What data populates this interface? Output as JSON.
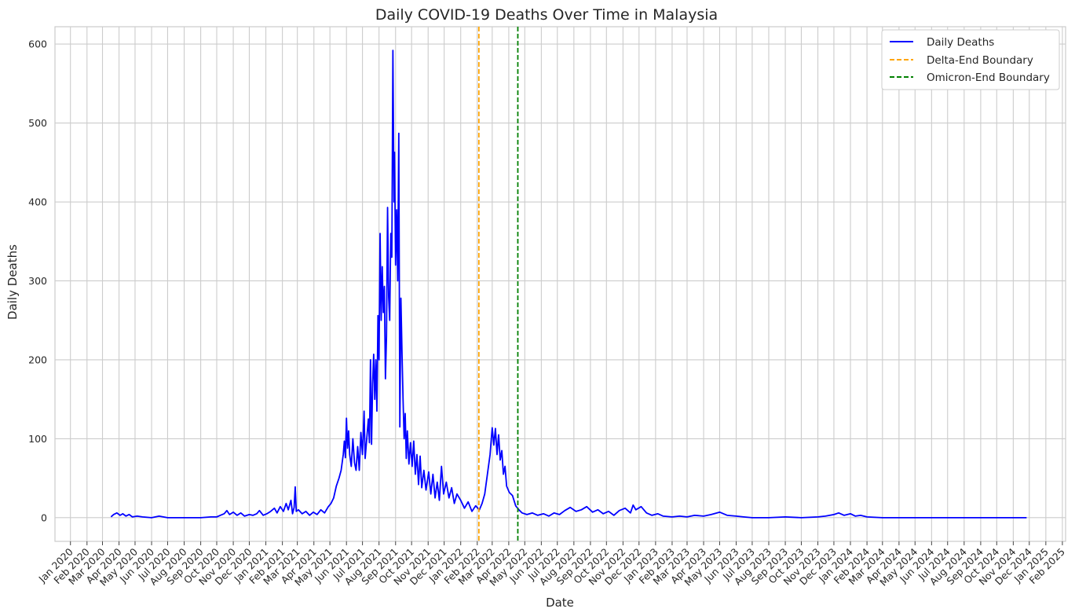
{
  "chart_data": {
    "type": "line",
    "title": "Daily COVID-19 Deaths Over Time in Malaysia",
    "xlabel": "Date",
    "ylabel": "Daily Deaths",
    "xlim": [
      "2019-12-03",
      "2025-02-07"
    ],
    "ylim": [
      -30,
      622
    ],
    "yticks": [
      0,
      100,
      200,
      300,
      400,
      500,
      600
    ],
    "xticks": [
      {
        "date": "2020-01-01",
        "label": "Jan 2020"
      },
      {
        "date": "2020-02-01",
        "label": "Feb 2020"
      },
      {
        "date": "2020-03-01",
        "label": "Mar 2020"
      },
      {
        "date": "2020-04-01",
        "label": "Apr 2020"
      },
      {
        "date": "2020-05-01",
        "label": "May 2020"
      },
      {
        "date": "2020-06-01",
        "label": "Jun 2020"
      },
      {
        "date": "2020-07-01",
        "label": "Jul 2020"
      },
      {
        "date": "2020-08-01",
        "label": "Aug 2020"
      },
      {
        "date": "2020-09-01",
        "label": "Sep 2020"
      },
      {
        "date": "2020-10-01",
        "label": "Oct 2020"
      },
      {
        "date": "2020-11-01",
        "label": "Nov 2020"
      },
      {
        "date": "2020-12-01",
        "label": "Dec 2020"
      },
      {
        "date": "2021-01-01",
        "label": "Jan 2021"
      },
      {
        "date": "2021-02-01",
        "label": "Feb 2021"
      },
      {
        "date": "2021-03-01",
        "label": "Mar 2021"
      },
      {
        "date": "2021-04-01",
        "label": "Apr 2021"
      },
      {
        "date": "2021-05-01",
        "label": "May 2021"
      },
      {
        "date": "2021-06-01",
        "label": "Jun 2021"
      },
      {
        "date": "2021-07-01",
        "label": "Jul 2021"
      },
      {
        "date": "2021-08-01",
        "label": "Aug 2021"
      },
      {
        "date": "2021-09-01",
        "label": "Sep 2021"
      },
      {
        "date": "2021-10-01",
        "label": "Oct 2021"
      },
      {
        "date": "2021-11-01",
        "label": "Nov 2021"
      },
      {
        "date": "2021-12-01",
        "label": "Dec 2021"
      },
      {
        "date": "2022-01-01",
        "label": "Jan 2022"
      },
      {
        "date": "2022-02-01",
        "label": "Feb 2022"
      },
      {
        "date": "2022-03-01",
        "label": "Mar 2022"
      },
      {
        "date": "2022-04-01",
        "label": "Apr 2022"
      },
      {
        "date": "2022-05-01",
        "label": "May 2022"
      },
      {
        "date": "2022-06-01",
        "label": "Jun 2022"
      },
      {
        "date": "2022-07-01",
        "label": "Jul 2022"
      },
      {
        "date": "2022-08-01",
        "label": "Aug 2022"
      },
      {
        "date": "2022-09-01",
        "label": "Sep 2022"
      },
      {
        "date": "2022-10-01",
        "label": "Oct 2022"
      },
      {
        "date": "2022-11-01",
        "label": "Nov 2022"
      },
      {
        "date": "2022-12-01",
        "label": "Dec 2022"
      },
      {
        "date": "2023-01-01",
        "label": "Jan 2023"
      },
      {
        "date": "2023-02-01",
        "label": "Feb 2023"
      },
      {
        "date": "2023-03-01",
        "label": "Mar 2023"
      },
      {
        "date": "2023-04-01",
        "label": "Apr 2023"
      },
      {
        "date": "2023-05-01",
        "label": "May 2023"
      },
      {
        "date": "2023-06-01",
        "label": "Jun 2023"
      },
      {
        "date": "2023-07-01",
        "label": "Jul 2023"
      },
      {
        "date": "2023-08-01",
        "label": "Aug 2023"
      },
      {
        "date": "2023-09-01",
        "label": "Sep 2023"
      },
      {
        "date": "2023-10-01",
        "label": "Oct 2023"
      },
      {
        "date": "2023-11-01",
        "label": "Nov 2023"
      },
      {
        "date": "2023-12-01",
        "label": "Dec 2023"
      },
      {
        "date": "2024-01-01",
        "label": "Jan 2024"
      },
      {
        "date": "2024-02-01",
        "label": "Feb 2024"
      },
      {
        "date": "2024-03-01",
        "label": "Mar 2024"
      },
      {
        "date": "2024-04-01",
        "label": "Apr 2024"
      },
      {
        "date": "2024-05-01",
        "label": "May 2024"
      },
      {
        "date": "2024-06-01",
        "label": "Jun 2024"
      },
      {
        "date": "2024-07-01",
        "label": "Jul 2024"
      },
      {
        "date": "2024-08-01",
        "label": "Aug 2024"
      },
      {
        "date": "2024-09-01",
        "label": "Sep 2024"
      },
      {
        "date": "2024-10-01",
        "label": "Oct 2024"
      },
      {
        "date": "2024-11-01",
        "label": "Nov 2024"
      },
      {
        "date": "2024-12-01",
        "label": "Dec 2024"
      },
      {
        "date": "2025-01-01",
        "label": "Jan 2025"
      },
      {
        "date": "2025-02-01",
        "label": "Feb 2025"
      }
    ],
    "grid": true,
    "legend_position": "top-right",
    "series": [
      {
        "name": "Daily Deaths",
        "color": "#0000ff",
        "style": "solid",
        "points": [
          [
            "2020-03-17",
            1
          ],
          [
            "2020-03-22",
            4
          ],
          [
            "2020-03-28",
            6
          ],
          [
            "2020-04-03",
            3
          ],
          [
            "2020-04-08",
            5
          ],
          [
            "2020-04-14",
            2
          ],
          [
            "2020-04-20",
            4
          ],
          [
            "2020-04-26",
            1
          ],
          [
            "2020-05-05",
            2
          ],
          [
            "2020-05-15",
            1
          ],
          [
            "2020-06-01",
            0
          ],
          [
            "2020-06-15",
            2
          ],
          [
            "2020-07-01",
            0
          ],
          [
            "2020-08-01",
            0
          ],
          [
            "2020-09-01",
            0
          ],
          [
            "2020-09-20",
            1
          ],
          [
            "2020-10-01",
            1
          ],
          [
            "2020-10-08",
            3
          ],
          [
            "2020-10-15",
            5
          ],
          [
            "2020-10-20",
            9
          ],
          [
            "2020-10-25",
            4
          ],
          [
            "2020-11-01",
            7
          ],
          [
            "2020-11-08",
            3
          ],
          [
            "2020-11-15",
            6
          ],
          [
            "2020-11-22",
            2
          ],
          [
            "2020-12-01",
            4
          ],
          [
            "2020-12-08",
            3
          ],
          [
            "2020-12-15",
            5
          ],
          [
            "2020-12-20",
            9
          ],
          [
            "2020-12-27",
            3
          ],
          [
            "2021-01-03",
            5
          ],
          [
            "2021-01-10",
            8
          ],
          [
            "2021-01-17",
            12
          ],
          [
            "2021-01-22",
            6
          ],
          [
            "2021-01-28",
            14
          ],
          [
            "2021-02-03",
            8
          ],
          [
            "2021-02-08",
            18
          ],
          [
            "2021-02-12",
            10
          ],
          [
            "2021-02-17",
            22
          ],
          [
            "2021-02-20",
            5
          ],
          [
            "2021-02-23",
            13
          ],
          [
            "2021-02-25",
            39
          ],
          [
            "2021-02-27",
            8
          ],
          [
            "2021-03-03",
            10
          ],
          [
            "2021-03-10",
            5
          ],
          [
            "2021-03-17",
            8
          ],
          [
            "2021-03-24",
            3
          ],
          [
            "2021-03-31",
            7
          ],
          [
            "2021-04-07",
            4
          ],
          [
            "2021-04-14",
            10
          ],
          [
            "2021-04-21",
            6
          ],
          [
            "2021-04-28",
            14
          ],
          [
            "2021-05-03",
            18
          ],
          [
            "2021-05-08",
            25
          ],
          [
            "2021-05-13",
            40
          ],
          [
            "2021-05-18",
            50
          ],
          [
            "2021-05-22",
            60
          ],
          [
            "2021-05-26",
            80
          ],
          [
            "2021-05-28",
            97
          ],
          [
            "2021-05-30",
            76
          ],
          [
            "2021-06-01",
            126
          ],
          [
            "2021-06-03",
            88
          ],
          [
            "2021-06-05",
            110
          ],
          [
            "2021-06-07",
            80
          ],
          [
            "2021-06-10",
            65
          ],
          [
            "2021-06-13",
            100
          ],
          [
            "2021-06-16",
            70
          ],
          [
            "2021-06-19",
            60
          ],
          [
            "2021-06-22",
            90
          ],
          [
            "2021-06-25",
            60
          ],
          [
            "2021-06-28",
            108
          ],
          [
            "2021-07-01",
            80
          ],
          [
            "2021-07-04",
            135
          ],
          [
            "2021-07-06",
            75
          ],
          [
            "2021-07-09",
            100
          ],
          [
            "2021-07-12",
            125
          ],
          [
            "2021-07-14",
            95
          ],
          [
            "2021-07-16",
            200
          ],
          [
            "2021-07-18",
            93
          ],
          [
            "2021-07-20",
            170
          ],
          [
            "2021-07-22",
            207
          ],
          [
            "2021-07-24",
            150
          ],
          [
            "2021-07-26",
            200
          ],
          [
            "2021-07-28",
            135
          ],
          [
            "2021-07-30",
            256
          ],
          [
            "2021-08-01",
            200
          ],
          [
            "2021-08-03",
            360
          ],
          [
            "2021-08-05",
            250
          ],
          [
            "2021-08-07",
            318
          ],
          [
            "2021-08-09",
            260
          ],
          [
            "2021-08-11",
            293
          ],
          [
            "2021-08-13",
            176
          ],
          [
            "2021-08-15",
            230
          ],
          [
            "2021-08-17",
            393
          ],
          [
            "2021-08-19",
            280
          ],
          [
            "2021-08-21",
            250
          ],
          [
            "2021-08-23",
            360
          ],
          [
            "2021-08-25",
            330
          ],
          [
            "2021-08-27",
            592
          ],
          [
            "2021-08-29",
            400
          ],
          [
            "2021-08-30",
            463
          ],
          [
            "2021-09-01",
            320
          ],
          [
            "2021-09-03",
            390
          ],
          [
            "2021-09-05",
            300
          ],
          [
            "2021-09-07",
            487
          ],
          [
            "2021-09-09",
            115
          ],
          [
            "2021-09-11",
            278
          ],
          [
            "2021-09-13",
            210
          ],
          [
            "2021-09-15",
            150
          ],
          [
            "2021-09-17",
            100
          ],
          [
            "2021-09-19",
            132
          ],
          [
            "2021-09-21",
            75
          ],
          [
            "2021-09-23",
            110
          ],
          [
            "2021-09-26",
            68
          ],
          [
            "2021-09-29",
            95
          ],
          [
            "2021-10-02",
            65
          ],
          [
            "2021-10-05",
            97
          ],
          [
            "2021-10-08",
            55
          ],
          [
            "2021-10-11",
            80
          ],
          [
            "2021-10-14",
            42
          ],
          [
            "2021-10-17",
            78
          ],
          [
            "2021-10-20",
            38
          ],
          [
            "2021-10-24",
            60
          ],
          [
            "2021-10-28",
            35
          ],
          [
            "2021-11-02",
            58
          ],
          [
            "2021-11-06",
            30
          ],
          [
            "2021-11-10",
            55
          ],
          [
            "2021-11-14",
            25
          ],
          [
            "2021-11-18",
            45
          ],
          [
            "2021-11-22",
            22
          ],
          [
            "2021-11-26",
            65
          ],
          [
            "2021-11-30",
            30
          ],
          [
            "2021-12-05",
            45
          ],
          [
            "2021-12-10",
            25
          ],
          [
            "2021-12-15",
            38
          ],
          [
            "2021-12-20",
            18
          ],
          [
            "2021-12-25",
            30
          ],
          [
            "2022-01-01",
            22
          ],
          [
            "2022-01-08",
            12
          ],
          [
            "2022-01-15",
            20
          ],
          [
            "2022-01-22",
            8
          ],
          [
            "2022-01-29",
            15
          ],
          [
            "2022-02-05",
            10
          ],
          [
            "2022-02-10",
            18
          ],
          [
            "2022-02-15",
            30
          ],
          [
            "2022-02-20",
            55
          ],
          [
            "2022-02-25",
            80
          ],
          [
            "2022-03-01",
            114
          ],
          [
            "2022-03-04",
            92
          ],
          [
            "2022-03-07",
            113
          ],
          [
            "2022-03-10",
            80
          ],
          [
            "2022-03-13",
            105
          ],
          [
            "2022-03-16",
            73
          ],
          [
            "2022-03-19",
            85
          ],
          [
            "2022-03-22",
            55
          ],
          [
            "2022-03-25",
            65
          ],
          [
            "2022-03-28",
            40
          ],
          [
            "2022-04-02",
            32
          ],
          [
            "2022-04-08",
            28
          ],
          [
            "2022-04-14",
            15
          ],
          [
            "2022-04-20",
            10
          ],
          [
            "2022-04-26",
            6
          ],
          [
            "2022-05-05",
            4
          ],
          [
            "2022-05-15",
            6
          ],
          [
            "2022-05-25",
            3
          ],
          [
            "2022-06-05",
            5
          ],
          [
            "2022-06-15",
            2
          ],
          [
            "2022-06-25",
            6
          ],
          [
            "2022-07-05",
            4
          ],
          [
            "2022-07-15",
            9
          ],
          [
            "2022-07-25",
            13
          ],
          [
            "2022-08-05",
            8
          ],
          [
            "2022-08-15",
            10
          ],
          [
            "2022-08-25",
            14
          ],
          [
            "2022-09-05",
            7
          ],
          [
            "2022-09-15",
            10
          ],
          [
            "2022-09-25",
            5
          ],
          [
            "2022-10-05",
            8
          ],
          [
            "2022-10-15",
            3
          ],
          [
            "2022-10-25",
            9
          ],
          [
            "2022-11-05",
            12
          ],
          [
            "2022-11-15",
            6
          ],
          [
            "2022-11-20",
            16
          ],
          [
            "2022-11-25",
            10
          ],
          [
            "2022-12-05",
            14
          ],
          [
            "2022-12-15",
            6
          ],
          [
            "2022-12-25",
            3
          ],
          [
            "2023-01-05",
            5
          ],
          [
            "2023-01-15",
            2
          ],
          [
            "2023-02-01",
            1
          ],
          [
            "2023-02-15",
            2
          ],
          [
            "2023-03-01",
            1
          ],
          [
            "2023-03-15",
            3
          ],
          [
            "2023-04-01",
            2
          ],
          [
            "2023-04-15",
            4
          ],
          [
            "2023-05-01",
            7
          ],
          [
            "2023-05-15",
            3
          ],
          [
            "2023-06-01",
            2
          ],
          [
            "2023-06-15",
            1
          ],
          [
            "2023-07-01",
            0
          ],
          [
            "2023-08-01",
            0
          ],
          [
            "2023-09-01",
            1
          ],
          [
            "2023-10-01",
            0
          ],
          [
            "2023-11-01",
            1
          ],
          [
            "2023-11-15",
            2
          ],
          [
            "2023-12-01",
            4
          ],
          [
            "2023-12-10",
            6
          ],
          [
            "2023-12-20",
            3
          ],
          [
            "2024-01-01",
            5
          ],
          [
            "2024-01-10",
            2
          ],
          [
            "2024-01-20",
            3
          ],
          [
            "2024-02-01",
            1
          ],
          [
            "2024-03-01",
            0
          ],
          [
            "2024-06-01",
            0
          ],
          [
            "2024-09-01",
            0
          ],
          [
            "2024-11-26",
            0
          ]
        ]
      },
      {
        "name": "Delta-End Boundary",
        "color": "#ffa500",
        "style": "dashed",
        "vline_at": "2022-02-04"
      },
      {
        "name": "Omicron-End Boundary",
        "color": "#008000",
        "style": "dashed",
        "vline_at": "2022-04-18"
      }
    ]
  }
}
